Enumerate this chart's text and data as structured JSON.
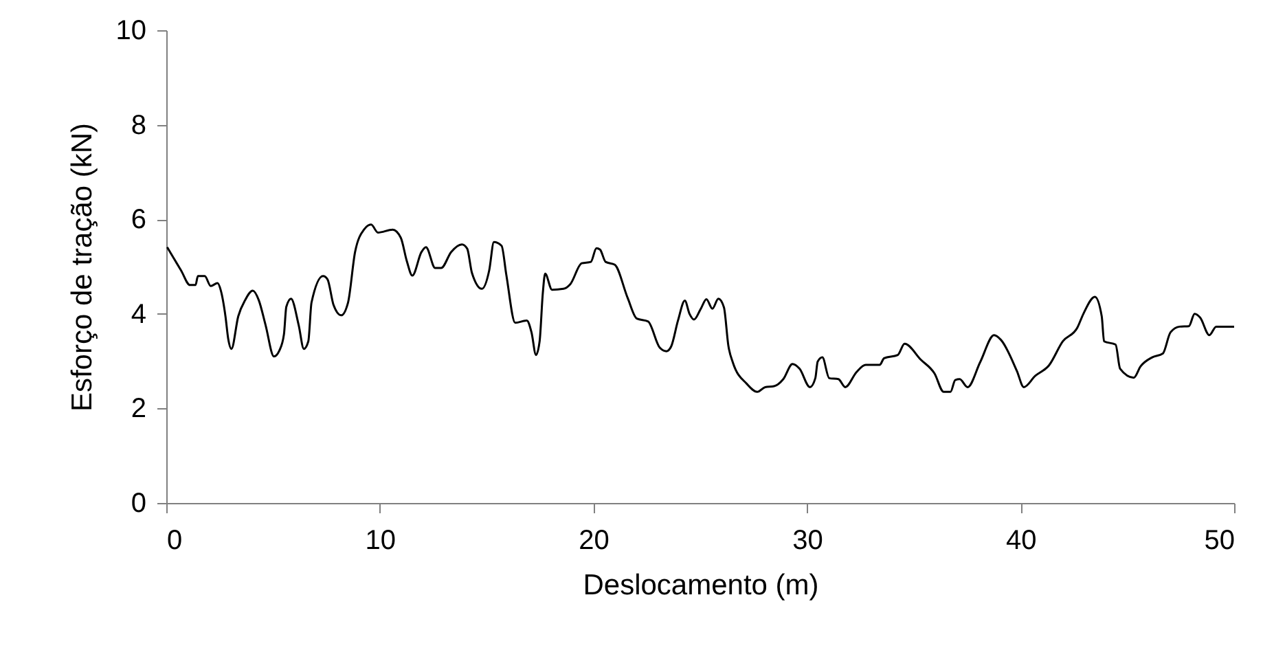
{
  "chart_data": {
    "type": "line",
    "xlabel": "Deslocamento (m)",
    "ylabel": "Esforço de tração (kN)",
    "xlim": [
      0,
      50
    ],
    "ylim": [
      0,
      10
    ],
    "xticks": [
      0,
      10,
      20,
      30,
      40,
      50
    ],
    "yticks": [
      0,
      2,
      4,
      6,
      8,
      10
    ],
    "marker": "none",
    "line_style": "solid",
    "x": [
      0.04,
      0.69,
      1.11,
      1.37,
      1.48,
      1.8,
      2.08,
      2.4,
      2.55,
      2.77,
      2.9,
      3.05,
      3.37,
      3.69,
      4.05,
      4.33,
      4.65,
      5.04,
      5.3,
      5.51,
      5.62,
      5.84,
      6.2,
      6.44,
      6.65,
      6.8,
      7.34,
      7.55,
      7.83,
      8.19,
      8.51,
      8.84,
      9.27,
      9.59,
      9.91,
      10.6,
      10.98,
      11.26,
      11.52,
      11.95,
      12.16,
      12.59,
      12.87,
      13.34,
      13.84,
      14.09,
      14.31,
      14.78,
      15.12,
      15.34,
      15.7,
      15.92,
      16.34,
      16.88,
      17.1,
      17.31,
      17.48,
      17.63,
      17.74,
      18.06,
      18.6,
      18.92,
      19.45,
      19.88,
      20.14,
      20.31,
      20.57,
      21.0,
      21.6,
      22.03,
      22.56,
      23.1,
      23.42,
      23.64,
      23.96,
      24.28,
      24.5,
      24.71,
      25.03,
      25.29,
      25.57,
      25.85,
      26.11,
      26.32,
      26.53,
      27.18,
      27.67,
      28.04,
      28.46,
      28.89,
      29.32,
      29.65,
      30.14,
      30.39,
      30.5,
      30.72,
      31.04,
      31.47,
      31.79,
      32.32,
      32.75,
      33.4,
      33.61,
      34.25,
      34.57,
      35.33,
      35.97,
      36.4,
      36.72,
      36.94,
      37.15,
      37.52,
      38.11,
      38.76,
      39.08,
      39.83,
      40.15,
      40.69,
      41.33,
      41.98,
      42.66,
      42.94,
      43.48,
      43.8,
      43.91,
      44.45,
      44.66,
      45.3,
      45.62,
      46.16,
      46.66,
      47.02,
      47.45,
      47.88,
      48.15,
      48.41,
      48.84,
      49.16,
      50.0
    ],
    "series": [
      {
        "color": "#000000",
        "values": [
          5.41,
          4.92,
          4.61,
          4.61,
          4.8,
          4.8,
          4.59,
          4.65,
          4.5,
          3.95,
          3.47,
          3.26,
          3.95,
          4.29,
          4.49,
          4.29,
          3.76,
          3.1,
          3.23,
          3.57,
          4.15,
          4.32,
          3.76,
          3.26,
          3.42,
          4.24,
          4.8,
          4.73,
          4.19,
          3.97,
          4.24,
          5.31,
          5.79,
          5.89,
          5.72,
          5.78,
          5.61,
          5.12,
          4.81,
          5.31,
          5.41,
          4.97,
          4.97,
          5.31,
          5.47,
          5.38,
          4.87,
          4.53,
          4.92,
          5.52,
          5.44,
          4.83,
          3.81,
          3.86,
          3.61,
          3.13,
          3.42,
          4.44,
          4.85,
          4.51,
          4.53,
          4.63,
          5.07,
          5.1,
          5.39,
          5.36,
          5.1,
          5.04,
          4.34,
          3.9,
          3.84,
          3.29,
          3.21,
          3.31,
          3.86,
          4.28,
          4.0,
          3.88,
          4.11,
          4.31,
          4.11,
          4.32,
          4.14,
          3.32,
          2.97,
          2.52,
          2.35,
          2.45,
          2.47,
          2.62,
          2.94,
          2.84,
          2.45,
          2.64,
          2.99,
          3.08,
          2.64,
          2.62,
          2.45,
          2.77,
          2.92,
          2.92,
          3.06,
          3.13,
          3.37,
          3.03,
          2.74,
          2.35,
          2.35,
          2.6,
          2.62,
          2.45,
          2.98,
          3.55,
          3.45,
          2.79,
          2.45,
          2.69,
          2.91,
          3.42,
          3.71,
          4.0,
          4.36,
          3.95,
          3.42,
          3.35,
          2.84,
          2.65,
          2.89,
          3.08,
          3.16,
          3.61,
          3.73,
          3.74,
          4.0,
          3.92,
          3.55,
          3.73,
          3.73
        ]
      }
    ]
  }
}
